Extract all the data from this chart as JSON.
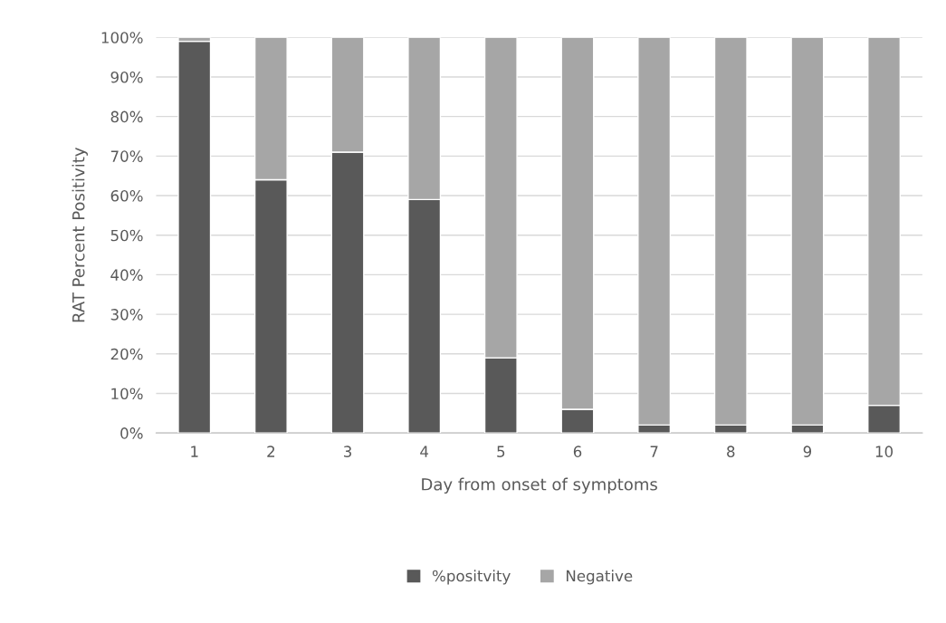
{
  "chart_data": {
    "type": "bar",
    "stacked": true,
    "xlabel": "Day from onset of symptoms",
    "ylabel": "RAT Percent Positivity",
    "categories": [
      "1",
      "2",
      "3",
      "4",
      "5",
      "6",
      "7",
      "8",
      "9",
      "10"
    ],
    "series": [
      {
        "name": "%positvity",
        "color": "#595959",
        "values": [
          99,
          64,
          71,
          59,
          19,
          6,
          2,
          2,
          2,
          7
        ]
      },
      {
        "name": "Negative",
        "color": "#a6a6a6",
        "values": [
          1,
          36,
          29,
          41,
          81,
          94,
          98,
          98,
          98,
          93
        ]
      }
    ],
    "ylim": [
      0,
      100
    ],
    "yticks": [
      {
        "value": 0,
        "label": "0%"
      },
      {
        "value": 10,
        "label": "10%"
      },
      {
        "value": 20,
        "label": "20%"
      },
      {
        "value": 30,
        "label": "30%"
      },
      {
        "value": 40,
        "label": "40%"
      },
      {
        "value": 50,
        "label": "50%"
      },
      {
        "value": 60,
        "label": "60%"
      },
      {
        "value": 70,
        "label": "70%"
      },
      {
        "value": 80,
        "label": "80%"
      },
      {
        "value": 90,
        "label": "90%"
      },
      {
        "value": 100,
        "label": "100%"
      }
    ],
    "grid": "y",
    "legend": "bottom"
  }
}
